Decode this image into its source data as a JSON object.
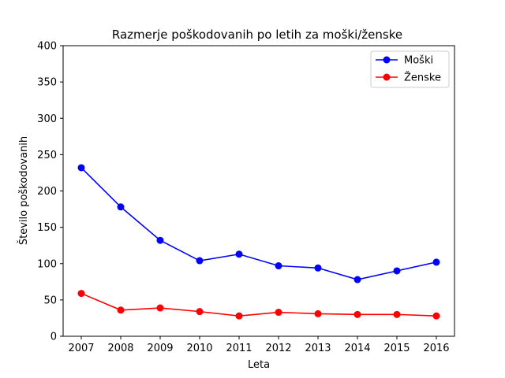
{
  "chart_data": {
    "type": "line",
    "title": "Razmerje poškodovanih po letih za moški/ženske",
    "xlabel": "Leta",
    "ylabel": "Število poškodovanih",
    "x": [
      "2007",
      "2008",
      "2009",
      "2010",
      "2011",
      "2012",
      "2013",
      "2014",
      "2015",
      "2016"
    ],
    "ylim": [
      0,
      400
    ],
    "yticks": [
      "0",
      "50",
      "100",
      "150",
      "200",
      "250",
      "300",
      "350",
      "400"
    ],
    "grid": false,
    "legend_position": "top-right",
    "series": [
      {
        "name": "Moški",
        "color": "#0000ff",
        "values": [
          232,
          178,
          132,
          104,
          113,
          97,
          94,
          78,
          90,
          102
        ]
      },
      {
        "name": "Ženske",
        "color": "#ff0000",
        "values": [
          59,
          36,
          39,
          34,
          28,
          33,
          31,
          30,
          30,
          28
        ]
      }
    ]
  }
}
